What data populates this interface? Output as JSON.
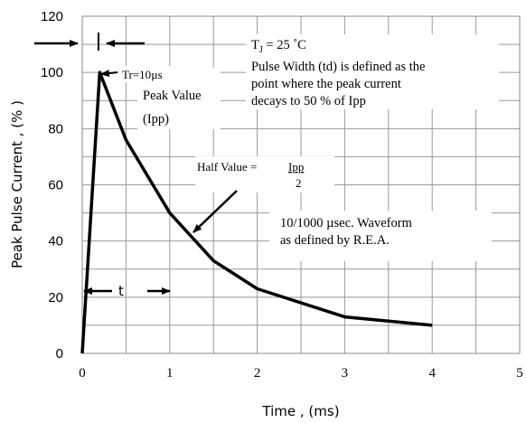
{
  "chart_data": {
    "type": "line",
    "xlabel": "Time , (ms)",
    "ylabel": "Peak Pulse Current , (% )",
    "xlim": [
      0,
      5
    ],
    "ylim": [
      0,
      120
    ],
    "x_ticks": [
      "0",
      "1",
      "2",
      "3",
      "4",
      "5"
    ],
    "y_ticks": [
      "0",
      "20",
      "40",
      "60",
      "80",
      "100",
      "120"
    ],
    "grid": true,
    "series": [
      {
        "x": [
          0,
          0.2,
          0.5,
          1.0,
          1.5,
          2.0,
          3.0,
          4.0
        ],
        "y": [
          0,
          100,
          76,
          50,
          33,
          23,
          13,
          10
        ]
      }
    ],
    "annotations": {
      "tr": "Tr=10µs",
      "peak_line1": "Peak Value",
      "peak_line2": "(Ipp)",
      "tj_label": "T",
      "tj_sub": "J",
      "tj_value": " = 25 ˚C",
      "pulse_line1": "Pulse Width (td) is defined as the",
      "pulse_line2": "point where the peak current",
      "pulse_line3": "decays to 50 % of Ipp",
      "half_prefix": "Half Value =",
      "half_num": "Ipp",
      "half_den": "2",
      "waveform_line1": "10/1000 µsec. Waveform",
      "waveform_line2": "as defined by R.E.A.",
      "t_label": "t"
    },
    "colors": {
      "curve": "#000000",
      "grid": "#999999"
    }
  }
}
